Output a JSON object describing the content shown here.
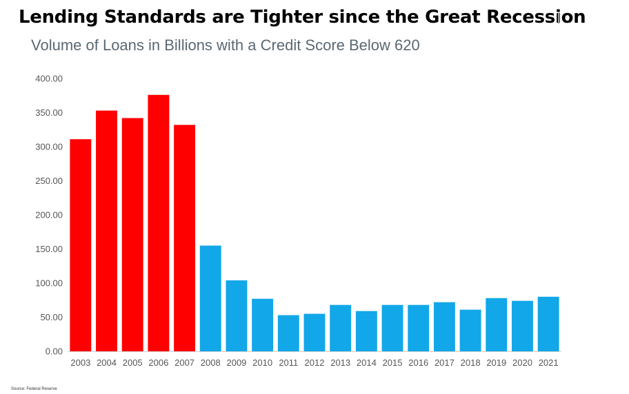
{
  "header": {
    "title": "Lending Standards are Tighter since the Great Recession",
    "subtitle": "Volume of Loans in Billions with a Credit Score Below 620"
  },
  "footer": {
    "source": "Source: Federal Reserve"
  },
  "colors": {
    "pre_recession": "#ff0000",
    "post_recession": "#12a7e8",
    "axis": "#cfcfcf",
    "tick_text": "#555555"
  },
  "chart_data": {
    "type": "bar",
    "categories": [
      "2003",
      "2004",
      "2005",
      "2006",
      "2007",
      "2008",
      "2009",
      "2010",
      "2011",
      "2012",
      "2013",
      "2014",
      "2015",
      "2016",
      "2017",
      "2018",
      "2019",
      "2020",
      "2021"
    ],
    "values": [
      311,
      353,
      342,
      376,
      332,
      155,
      104,
      77,
      53,
      55,
      68,
      59,
      68,
      68,
      72,
      61,
      78,
      74,
      80
    ],
    "bar_colors": [
      "#ff0000",
      "#ff0000",
      "#ff0000",
      "#ff0000",
      "#ff0000",
      "#12a7e8",
      "#12a7e8",
      "#12a7e8",
      "#12a7e8",
      "#12a7e8",
      "#12a7e8",
      "#12a7e8",
      "#12a7e8",
      "#12a7e8",
      "#12a7e8",
      "#12a7e8",
      "#12a7e8",
      "#12a7e8",
      "#12a7e8"
    ],
    "y_ticks": [
      "0.00",
      "50.00",
      "100.00",
      "150.00",
      "200.00",
      "250.00",
      "300.00",
      "350.00",
      "400.00"
    ],
    "ylim": [
      0,
      400
    ],
    "grid": false,
    "legend": "none"
  }
}
